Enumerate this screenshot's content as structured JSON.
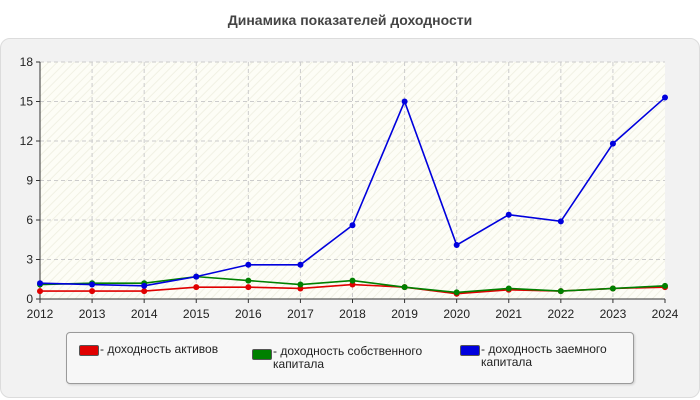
{
  "title": "Динамика показателей доходности",
  "colors": {
    "assets": "#e00000",
    "equity": "#008000",
    "debt": "#0000dd"
  },
  "chart_data": {
    "type": "line",
    "title": "Динамика показателей доходности",
    "xlabel": "",
    "ylabel": "",
    "ylim": [
      0,
      18
    ],
    "yticks": [
      0,
      3,
      6,
      9,
      12,
      15,
      18
    ],
    "grid": true,
    "legend_position": "bottom",
    "categories": [
      "2012",
      "2013",
      "2014",
      "2015",
      "2016",
      "2017",
      "2018",
      "2019",
      "2020",
      "2021",
      "2022",
      "2023",
      "2024"
    ],
    "series": [
      {
        "name": "- доходность активов",
        "color": "#e00000",
        "values": [
          0.6,
          0.6,
          0.6,
          0.9,
          0.9,
          0.8,
          1.1,
          0.9,
          0.4,
          0.7,
          0.6,
          0.8,
          0.9
        ]
      },
      {
        "name": "- доходность собственного капитала",
        "color": "#008000",
        "values": [
          1.1,
          1.2,
          1.2,
          1.7,
          1.4,
          1.1,
          1.4,
          0.9,
          0.5,
          0.8,
          0.6,
          0.8,
          1.0
        ]
      },
      {
        "name": "- доходность заемного капитала",
        "color": "#0000dd",
        "values": [
          1.2,
          1.1,
          1.0,
          1.7,
          2.6,
          2.6,
          5.6,
          15.0,
          4.1,
          6.4,
          5.9,
          11.8,
          15.3
        ]
      }
    ]
  }
}
